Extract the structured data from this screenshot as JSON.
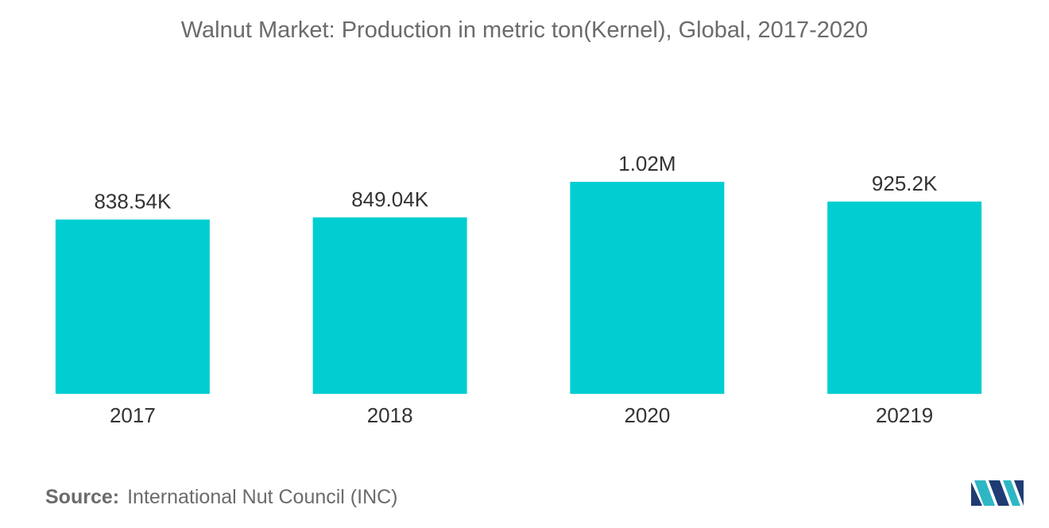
{
  "chart_data": {
    "type": "bar",
    "title": "Walnut Market: Production in metric ton(Kernel), Global, 2017-2020",
    "categories": [
      "2017",
      "2018",
      "2020",
      "20219"
    ],
    "values": [
      838540,
      849040,
      1020000,
      925200
    ],
    "value_labels": [
      "838.54K",
      "849.04K",
      "1.02M",
      "925.2K"
    ],
    "ylim": [
      0,
      1020000
    ],
    "grid": false,
    "legend": "none",
    "bar_color": "#00CED1"
  },
  "source": {
    "label": "Source:",
    "value": "International Nut Council (INC)"
  },
  "logo": {
    "icon": "mordor-intelligence-logo-icon",
    "colors": [
      "#1f3b73",
      "#2fb6c4"
    ]
  }
}
